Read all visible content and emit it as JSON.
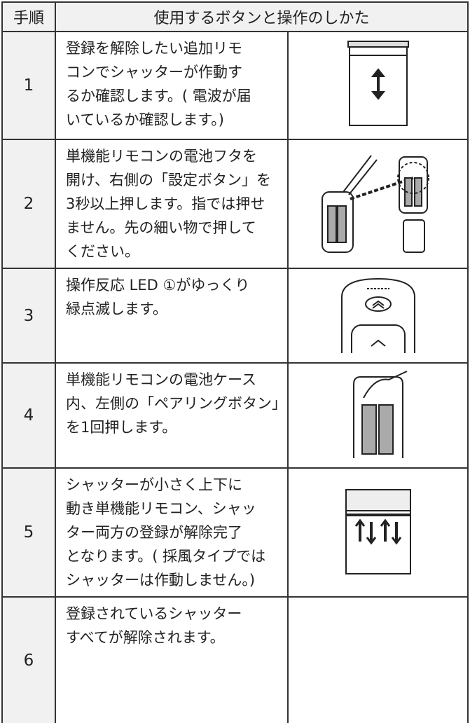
{
  "table": {
    "header": [
      "手順",
      "使用するボタンと操作のしかた"
    ],
    "rows": [
      {
        "step": "1",
        "lines": [
          "登録を解除したい追加リモ",
          "コンでシャッターが作動す",
          "るか確認します。( 電波が届",
          "いているか確認します。)"
        ]
      },
      {
        "step": "2",
        "lines": [
          "単機能リモコンの電池フタを",
          "開け、右側の「設定ボタン」を",
          "3秒以上押します。指では押せ",
          "ません。先の細い物で押して",
          "ください。"
        ]
      },
      {
        "step": "3",
        "lines": [
          "操作反応 LED ①がゆっくり",
          "緑点滅します。"
        ]
      },
      {
        "step": "4",
        "lines": [
          "単機能リモコンの電池ケース",
          "内、左側の「ペアリングボタン」",
          "を1回押します。"
        ]
      },
      {
        "step": "5",
        "lines": [
          "シャッターが小さく上下に",
          "動き単機能リモコン、シャッ",
          "ター両方の登録が解除完了",
          "となります。( 採風タイプでは",
          "シャッターは作動しません。)"
        ]
      },
      {
        "step": "6",
        "lines": [
          "登録されているシャッター",
          "すべてが解除されます。"
        ]
      }
    ]
  }
}
